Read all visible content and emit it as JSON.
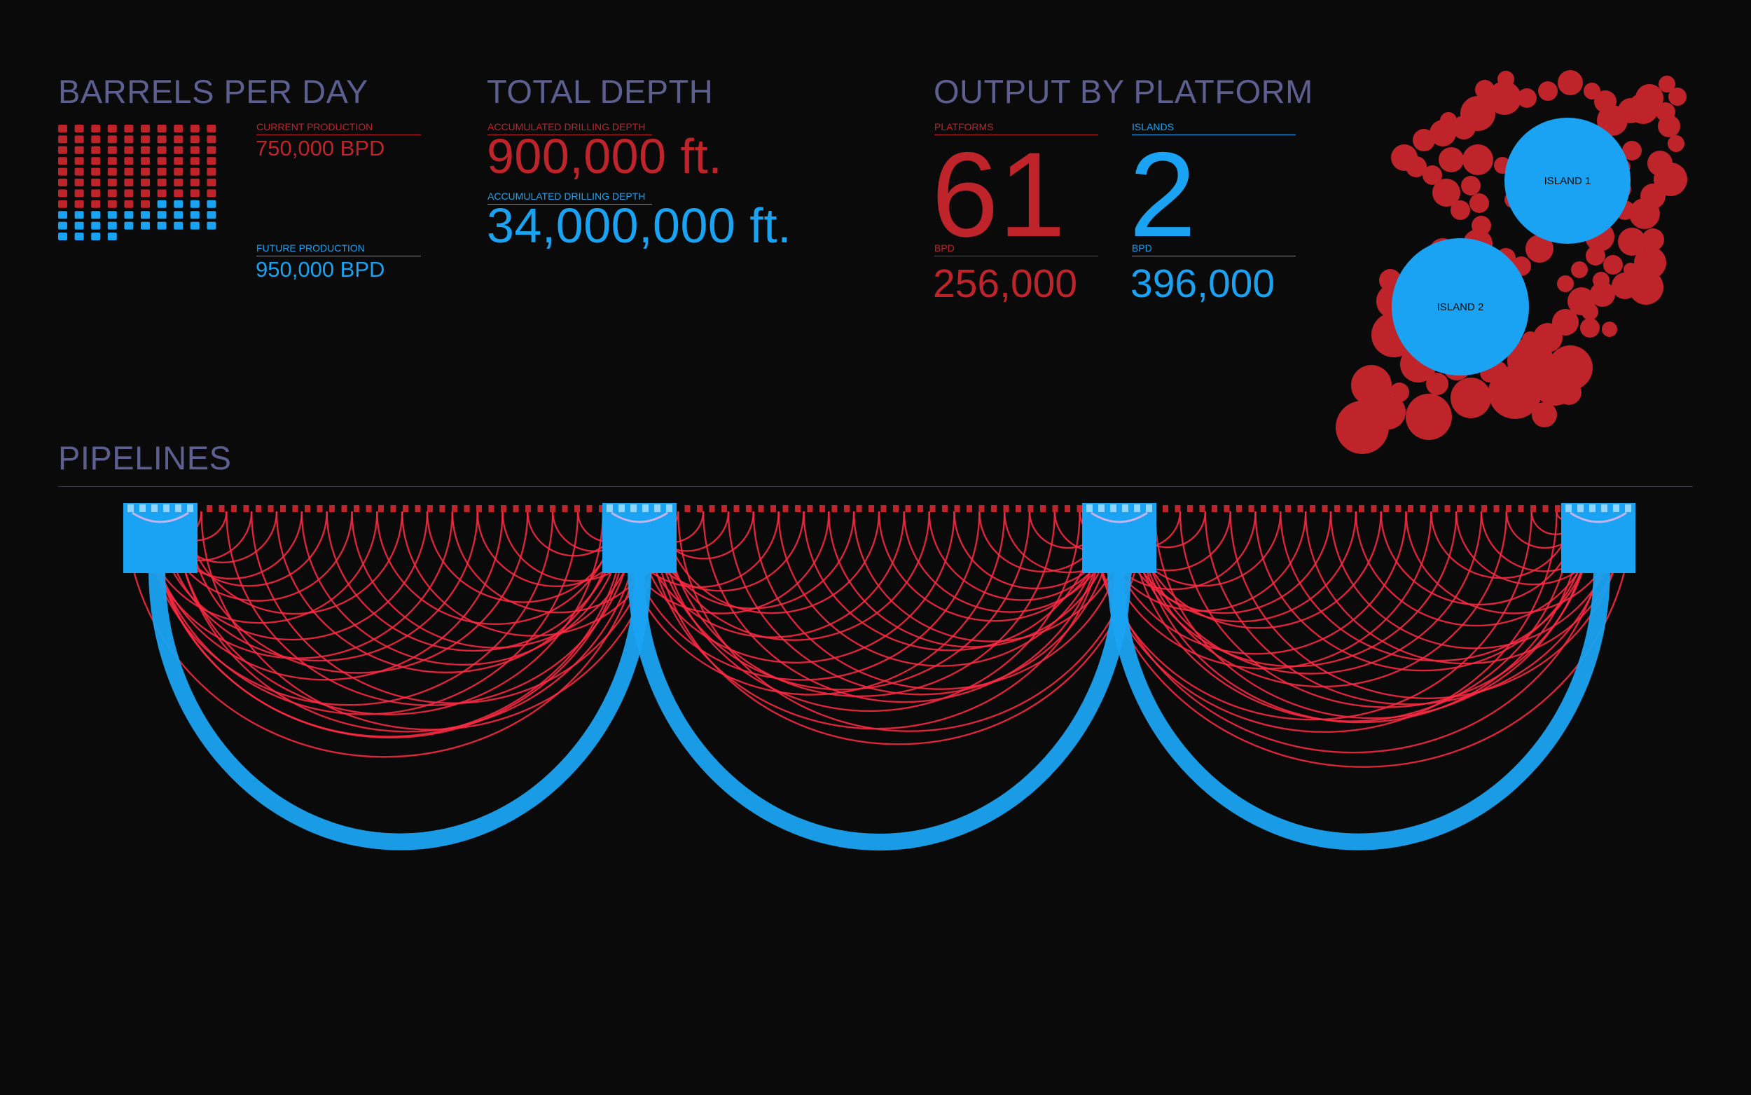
{
  "barrels": {
    "title": "BARRELS PER DAY",
    "current_label": "CURRENT PRODUCTION",
    "current_value": "750,000 BPD",
    "future_label": "FUTURE PRODUCTION",
    "future_value": "950,000 BPD"
  },
  "depth": {
    "title": "TOTAL DEPTH",
    "label_1": "ACCUMULATED DRILLING DEPTH",
    "value_1": "900,000 ft.",
    "label_2": "ACCUMULATED DRILLING DEPTH",
    "value_2": "34,000,000 ft."
  },
  "output": {
    "title": "OUTPUT BY PLATFORM",
    "platforms_label": "PLATFORMS",
    "platforms_value": "61",
    "platforms_bpd_label": "BPD",
    "platforms_bpd_value": "256,000",
    "islands_label": "ISLANDS",
    "islands_value": "2",
    "islands_bpd_label": "BPD",
    "islands_bpd_value": "396,000",
    "island_1": "ISLAND 1",
    "island_2": "ISLAND 2"
  },
  "pipelines": {
    "title": "PIPELINES",
    "hubs": 4,
    "platform_nodes": 61
  },
  "colors": {
    "red": "#c0242b",
    "blue": "#1aa3f2",
    "arc_red": "#ff2a44",
    "heading": "#5d5f90",
    "background": "#0a0a0a"
  },
  "chart_data": [
    {
      "type": "waffle",
      "title": "BARRELS PER DAY",
      "series": [
        {
          "name": "CURRENT PRODUCTION",
          "value": 750000
        },
        {
          "name": "FUTURE PRODUCTION",
          "value": 950000
        }
      ],
      "unit": "BPD"
    },
    {
      "type": "bubble",
      "title": "OUTPUT BY PLATFORM",
      "categories": [
        "ISLAND 1",
        "ISLAND 2"
      ],
      "platforms": 61,
      "islands": 2
    },
    {
      "type": "arc",
      "title": "PIPELINES",
      "hubs": 4,
      "nodes": 61
    }
  ]
}
